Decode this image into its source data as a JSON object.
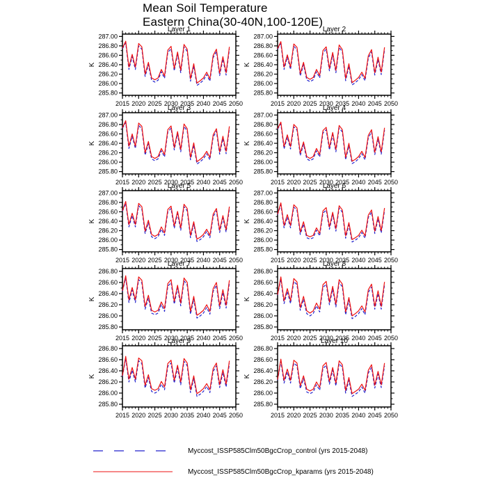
{
  "title": {
    "line1": "Mean Soil Temperature",
    "line2": "Eastern China(30-40N,100-120E)"
  },
  "chart_data": {
    "type": "line",
    "title": "Mean Soil Temperature",
    "subtitle": "Eastern China(30-40N,100-120E)",
    "ylabel": "K",
    "grid": false,
    "legend_position": "bottom",
    "xlim": [
      2015,
      2050
    ],
    "xticks": [
      2015,
      2020,
      2025,
      2030,
      2035,
      2040,
      2045,
      2050
    ],
    "x": [
      2015,
      2016,
      2017,
      2018,
      2019,
      2020,
      2021,
      2022,
      2023,
      2024,
      2025,
      2026,
      2027,
      2028,
      2029,
      2030,
      2031,
      2032,
      2033,
      2034,
      2035,
      2036,
      2037,
      2038,
      2039,
      2040,
      2041,
      2042,
      2043,
      2044,
      2045,
      2046,
      2047,
      2048
    ],
    "series": [
      {
        "key": "control",
        "legend_label": "Myccost_ISSP585Clm50BgcCrop_control (yrs 2015-2048)",
        "color": "#2222cc",
        "dash": "4 2.5",
        "style": "dashed"
      },
      {
        "key": "kparams",
        "legend_label": "Myccost_ISSP585Clm50BgcCrop_kparams (yrs 2015-2048)",
        "color": "#ee1111",
        "dash": null,
        "style": "solid"
      }
    ],
    "panels": [
      {
        "title": "Layer 1",
        "ylim": [
          285.8,
          287.0
        ],
        "yticks": [
          285.8,
          286.0,
          286.2,
          286.4,
          286.6,
          286.8,
          287.0
        ],
        "kparams": [
          286.75,
          286.9,
          286.35,
          286.62,
          286.35,
          286.85,
          286.78,
          286.2,
          286.45,
          286.12,
          286.08,
          286.12,
          286.3,
          286.16,
          286.71,
          286.79,
          286.32,
          286.67,
          286.28,
          286.83,
          286.73,
          286.1,
          286.42,
          286.01,
          286.06,
          286.12,
          286.24,
          286.1,
          286.6,
          286.73,
          286.22,
          286.57,
          286.23,
          286.78
        ],
        "control": [
          286.74,
          286.86,
          286.3,
          286.57,
          286.3,
          286.8,
          286.73,
          286.15,
          286.4,
          286.07,
          286.03,
          286.07,
          286.25,
          286.11,
          286.66,
          286.74,
          286.27,
          286.62,
          286.23,
          286.78,
          286.68,
          286.05,
          286.37,
          285.96,
          286.01,
          286.07,
          286.19,
          286.05,
          286.55,
          286.68,
          286.17,
          286.52,
          286.18,
          286.73
        ]
      },
      {
        "title": "Layer 2",
        "ylim": [
          285.8,
          287.0
        ],
        "yticks": [
          285.8,
          286.0,
          286.2,
          286.4,
          286.6,
          286.8,
          287.0
        ],
        "kparams": [
          286.74,
          286.89,
          286.35,
          286.61,
          286.35,
          286.84,
          286.77,
          286.21,
          286.45,
          286.13,
          286.09,
          286.13,
          286.3,
          286.17,
          286.7,
          286.78,
          286.32,
          286.66,
          286.28,
          286.82,
          286.72,
          286.11,
          286.42,
          286.02,
          286.07,
          286.13,
          286.24,
          286.11,
          286.59,
          286.72,
          286.23,
          286.56,
          286.24,
          286.77
        ],
        "control": [
          286.73,
          286.85,
          286.3,
          286.56,
          286.3,
          286.79,
          286.72,
          286.16,
          286.4,
          286.08,
          286.04,
          286.08,
          286.25,
          286.12,
          286.65,
          286.73,
          286.27,
          286.61,
          286.23,
          286.77,
          286.67,
          286.06,
          286.37,
          285.97,
          286.02,
          286.08,
          286.19,
          286.06,
          286.54,
          286.67,
          286.18,
          286.51,
          286.19,
          286.72
        ]
      },
      {
        "title": "Layer 3",
        "ylim": [
          285.8,
          287.0
        ],
        "yticks": [
          285.8,
          286.0,
          286.2,
          286.4,
          286.6,
          286.8,
          287.0
        ],
        "kparams": [
          286.73,
          286.88,
          286.34,
          286.6,
          286.34,
          286.83,
          286.76,
          286.2,
          286.44,
          286.12,
          286.08,
          286.12,
          286.29,
          286.16,
          286.69,
          286.77,
          286.31,
          286.65,
          286.27,
          286.81,
          286.71,
          286.1,
          286.41,
          286.01,
          286.06,
          286.12,
          286.23,
          286.1,
          286.58,
          286.71,
          286.22,
          286.55,
          286.23,
          286.76
        ],
        "control": [
          286.72,
          286.84,
          286.29,
          286.55,
          286.29,
          286.78,
          286.71,
          286.15,
          286.39,
          286.07,
          286.03,
          286.07,
          286.24,
          286.11,
          286.64,
          286.72,
          286.26,
          286.6,
          286.22,
          286.76,
          286.66,
          286.05,
          286.36,
          285.96,
          286.01,
          286.07,
          286.18,
          286.05,
          286.53,
          286.66,
          286.17,
          286.5,
          286.18,
          286.71
        ]
      },
      {
        "title": "Layer 4",
        "ylim": [
          285.8,
          287.0
        ],
        "yticks": [
          285.8,
          286.0,
          286.2,
          286.4,
          286.6,
          286.8,
          287.0
        ],
        "kparams": [
          286.71,
          286.85,
          286.33,
          286.58,
          286.33,
          286.8,
          286.73,
          286.19,
          286.43,
          286.12,
          286.08,
          286.12,
          286.29,
          286.16,
          286.67,
          286.74,
          286.31,
          286.63,
          286.27,
          286.78,
          286.69,
          286.1,
          286.4,
          286.02,
          286.06,
          286.12,
          286.23,
          286.1,
          286.57,
          286.69,
          286.21,
          286.54,
          286.22,
          286.73
        ],
        "control": [
          286.7,
          286.81,
          286.28,
          286.53,
          286.28,
          286.75,
          286.68,
          286.14,
          286.38,
          286.07,
          286.03,
          286.07,
          286.24,
          286.11,
          286.62,
          286.69,
          286.26,
          286.58,
          286.22,
          286.73,
          286.64,
          286.05,
          286.35,
          285.97,
          286.01,
          286.07,
          286.18,
          286.05,
          286.52,
          286.64,
          286.16,
          286.49,
          286.17,
          286.68
        ]
      },
      {
        "title": "Layer 5",
        "ylim": [
          285.8,
          287.0
        ],
        "yticks": [
          285.8,
          286.0,
          286.2,
          286.4,
          286.6,
          286.8,
          287.0
        ],
        "kparams": [
          286.62,
          286.82,
          286.33,
          286.57,
          286.33,
          286.78,
          286.71,
          286.19,
          286.42,
          286.12,
          286.08,
          286.12,
          286.28,
          286.15,
          286.65,
          286.72,
          286.3,
          286.61,
          286.26,
          286.76,
          286.67,
          286.1,
          286.39,
          286.02,
          286.06,
          286.12,
          286.23,
          286.1,
          286.55,
          286.67,
          286.21,
          286.52,
          286.22,
          286.71
        ],
        "control": [
          286.61,
          286.78,
          286.28,
          286.52,
          286.28,
          286.73,
          286.66,
          286.14,
          286.37,
          286.07,
          286.03,
          286.07,
          286.23,
          286.1,
          286.6,
          286.67,
          286.25,
          286.56,
          286.21,
          286.71,
          286.62,
          286.05,
          286.34,
          285.97,
          286.01,
          286.07,
          286.18,
          286.05,
          286.5,
          286.62,
          286.16,
          286.47,
          286.17,
          286.66
        ]
      },
      {
        "title": "Layer 6",
        "ylim": [
          285.8,
          287.0
        ],
        "yticks": [
          285.8,
          286.0,
          286.2,
          286.4,
          286.6,
          286.8,
          287.0
        ],
        "kparams": [
          286.55,
          286.79,
          286.31,
          286.54,
          286.31,
          286.75,
          286.68,
          286.17,
          286.39,
          286.1,
          286.07,
          286.1,
          286.26,
          286.14,
          286.62,
          286.69,
          286.28,
          286.59,
          286.24,
          286.73,
          286.64,
          286.09,
          286.37,
          286.01,
          286.05,
          286.1,
          286.21,
          286.09,
          286.53,
          286.64,
          286.19,
          286.5,
          286.2,
          286.68
        ],
        "control": [
          286.54,
          286.75,
          286.26,
          286.49,
          286.26,
          286.7,
          286.63,
          286.12,
          286.34,
          286.05,
          286.02,
          286.05,
          286.21,
          286.09,
          286.57,
          286.64,
          286.23,
          286.54,
          286.19,
          286.68,
          286.59,
          286.04,
          286.32,
          285.96,
          286.0,
          286.05,
          286.16,
          286.04,
          286.48,
          286.59,
          286.14,
          286.45,
          286.15,
          286.63
        ]
      },
      {
        "title": "Layer 7",
        "ylim": [
          285.8,
          286.8
        ],
        "yticks": [
          285.8,
          286.0,
          286.2,
          286.4,
          286.6,
          286.8
        ],
        "kparams": [
          286.45,
          286.72,
          286.29,
          286.51,
          286.29,
          286.7,
          286.64,
          286.17,
          286.37,
          286.1,
          286.07,
          286.1,
          286.25,
          286.13,
          286.58,
          286.65,
          286.26,
          286.55,
          286.23,
          286.68,
          286.6,
          286.08,
          286.35,
          286.01,
          286.05,
          286.1,
          286.2,
          286.08,
          286.49,
          286.6,
          286.18,
          286.47,
          286.19,
          286.64
        ],
        "control": [
          286.44,
          286.68,
          286.24,
          286.46,
          286.24,
          286.65,
          286.59,
          286.12,
          286.32,
          286.05,
          286.02,
          286.05,
          286.2,
          286.08,
          286.53,
          286.6,
          286.21,
          286.5,
          286.18,
          286.63,
          286.55,
          286.03,
          286.3,
          285.96,
          286.0,
          286.05,
          286.15,
          286.03,
          286.44,
          286.55,
          286.13,
          286.42,
          286.14,
          286.59
        ]
      },
      {
        "title": "Layer 8",
        "ylim": [
          285.8,
          286.8
        ],
        "yticks": [
          285.8,
          286.0,
          286.2,
          286.4,
          286.6,
          286.8
        ],
        "kparams": [
          286.38,
          286.7,
          286.27,
          286.49,
          286.27,
          286.67,
          286.61,
          286.15,
          286.35,
          286.09,
          286.05,
          286.09,
          286.23,
          286.12,
          286.56,
          286.62,
          286.25,
          286.53,
          286.21,
          286.65,
          286.57,
          286.07,
          286.33,
          286.0,
          286.04,
          286.09,
          286.18,
          286.07,
          286.47,
          286.57,
          286.17,
          286.45,
          286.17,
          286.61
        ],
        "control": [
          286.37,
          286.66,
          286.22,
          286.44,
          286.22,
          286.62,
          286.56,
          286.1,
          286.3,
          286.04,
          286.0,
          286.04,
          286.18,
          286.07,
          286.51,
          286.57,
          286.2,
          286.48,
          286.16,
          286.6,
          286.52,
          286.02,
          286.28,
          285.95,
          285.99,
          286.04,
          286.13,
          286.02,
          286.42,
          286.52,
          286.12,
          286.4,
          286.12,
          286.56
        ]
      },
      {
        "title": "Layer 9",
        "ylim": [
          285.8,
          286.8
        ],
        "yticks": [
          285.8,
          286.0,
          286.2,
          286.4,
          286.6,
          286.8
        ],
        "kparams": [
          286.31,
          286.66,
          286.25,
          286.46,
          286.25,
          286.63,
          286.58,
          286.14,
          286.33,
          286.08,
          286.05,
          286.08,
          286.21,
          286.11,
          286.53,
          286.59,
          286.23,
          286.5,
          286.2,
          286.62,
          286.54,
          286.06,
          286.31,
          285.99,
          286.03,
          286.08,
          286.17,
          286.06,
          286.44,
          286.54,
          286.15,
          286.42,
          286.16,
          286.58
        ],
        "control": [
          286.3,
          286.62,
          286.2,
          286.41,
          286.2,
          286.58,
          286.53,
          286.09,
          286.28,
          286.03,
          286.0,
          286.03,
          286.16,
          286.06,
          286.48,
          286.54,
          286.18,
          286.45,
          286.15,
          286.57,
          286.49,
          286.01,
          286.26,
          285.94,
          285.98,
          286.03,
          286.12,
          286.01,
          286.39,
          286.49,
          286.1,
          286.37,
          286.11,
          286.53
        ]
      },
      {
        "title": "Layer 10",
        "ylim": [
          285.8,
          286.8
        ],
        "yticks": [
          285.8,
          286.0,
          286.2,
          286.4,
          286.6,
          286.8
        ],
        "kparams": [
          286.24,
          286.61,
          286.23,
          286.43,
          286.23,
          286.59,
          286.54,
          286.13,
          286.31,
          286.07,
          286.04,
          286.07,
          286.2,
          286.1,
          286.49,
          286.55,
          286.21,
          286.46,
          286.18,
          286.58,
          286.51,
          286.05,
          286.28,
          285.99,
          286.03,
          286.07,
          286.16,
          286.05,
          286.41,
          286.51,
          286.14,
          286.39,
          286.15,
          286.54
        ],
        "control": [
          286.23,
          286.57,
          286.18,
          286.38,
          286.18,
          286.54,
          286.49,
          286.08,
          286.26,
          286.02,
          285.99,
          286.02,
          286.15,
          286.05,
          286.44,
          286.5,
          286.16,
          286.41,
          286.13,
          286.53,
          286.46,
          286.0,
          286.23,
          285.94,
          285.98,
          286.02,
          286.11,
          286.0,
          286.36,
          286.46,
          286.09,
          286.34,
          286.1,
          286.49
        ]
      }
    ]
  }
}
